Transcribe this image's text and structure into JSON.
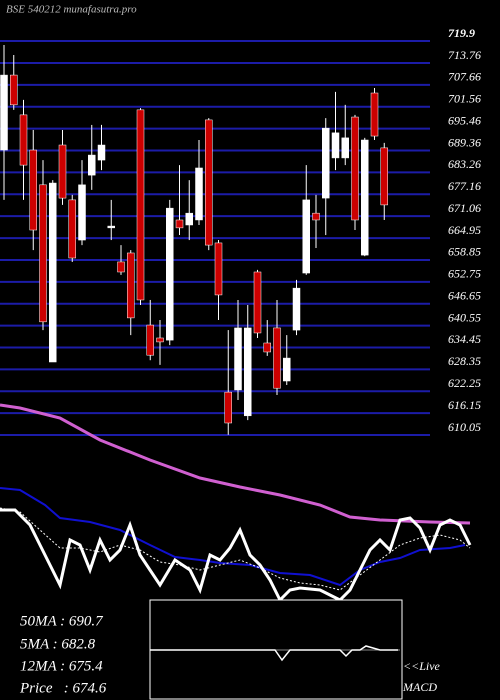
{
  "chart_data": {
    "type": "candlestick",
    "title": "BSE 540212 munafasutra.pro",
    "ylim": [
      610.05,
      719.9
    ],
    "yticks": [
      719.9,
      713.76,
      707.66,
      701.56,
      695.46,
      689.36,
      683.26,
      677.16,
      671.06,
      664.95,
      658.85,
      652.75,
      646.65,
      640.55,
      634.45,
      628.35,
      622.25,
      616.15,
      610.05
    ],
    "grid": true,
    "grid_color": "#1c1ca8",
    "up_color": "#ffffff",
    "down_color": "#cc0000",
    "open": [
      689.5,
      710.4,
      699.3,
      689.5,
      679.8,
      630.4,
      690.9,
      675.6,
      664.4,
      682.5,
      686.7,
      667.8,
      658.3,
      660.8,
      700.7,
      640.7,
      637.1,
      636.5,
      670.0,
      668.6,
      670.0,
      697.9,
      663.6,
      622.0,
      622.6,
      615.4,
      655.5,
      635.7,
      639.9,
      625.1,
      639.3,
      655.2,
      671.9,
      676.1,
      687.3,
      687.3,
      698.7,
      660.2,
      705.4,
      690.1
    ],
    "high": [
      718.8,
      716.0,
      703.5,
      695.1,
      686.7,
      681.1,
      695.1,
      677.0,
      686.7,
      696.5,
      696.5,
      675.6,
      663.0,
      661.6,
      701.2,
      647.7,
      642.1,
      675.6,
      685.3,
      681.1,
      692.3,
      698.4,
      664.4,
      639.3,
      647.7,
      646.3,
      656.1,
      642.1,
      647.7,
      637.9,
      653.3,
      685.3,
      677.0,
      698.4,
      705.7,
      702.1,
      699.3,
      692.9,
      706.8,
      691.5
    ],
    "low": [
      675.6,
      700.7,
      675.6,
      661.6,
      639.3,
      630.4,
      674.2,
      658.3,
      663.0,
      678.4,
      683.9,
      664.4,
      654.7,
      637.9,
      646.3,
      630.9,
      629.6,
      635.1,
      665.8,
      664.4,
      668.6,
      661.6,
      642.1,
      610.1,
      619.8,
      614.2,
      637.1,
      632.1,
      621.2,
      624.0,
      637.9,
      654.7,
      662.2,
      665.8,
      683.9,
      685.3,
      667.2,
      659.9,
      692.3,
      670.0
    ],
    "close": [
      710.4,
      702.1,
      685.3,
      667.2,
      641.6,
      680.3,
      676.1,
      659.4,
      679.8,
      688.1,
      690.9,
      668.3,
      655.5,
      642.7,
      647.7,
      632.3,
      636.0,
      673.3,
      667.8,
      671.9,
      684.5,
      663.0,
      649.1,
      613.4,
      639.9,
      639.9,
      638.5,
      633.2,
      623.1,
      631.5,
      651.0,
      675.6,
      670.0,
      695.6,
      694.3,
      692.9,
      670.0,
      692.3,
      693.4,
      674.2
    ],
    "indicators": [
      "50MA : 690.7",
      "5MA : 682.8",
      "12MA : 675.4",
      "Price   : 674.6"
    ],
    "macd_labels": [
      "<<Live",
      "MACD"
    ]
  }
}
